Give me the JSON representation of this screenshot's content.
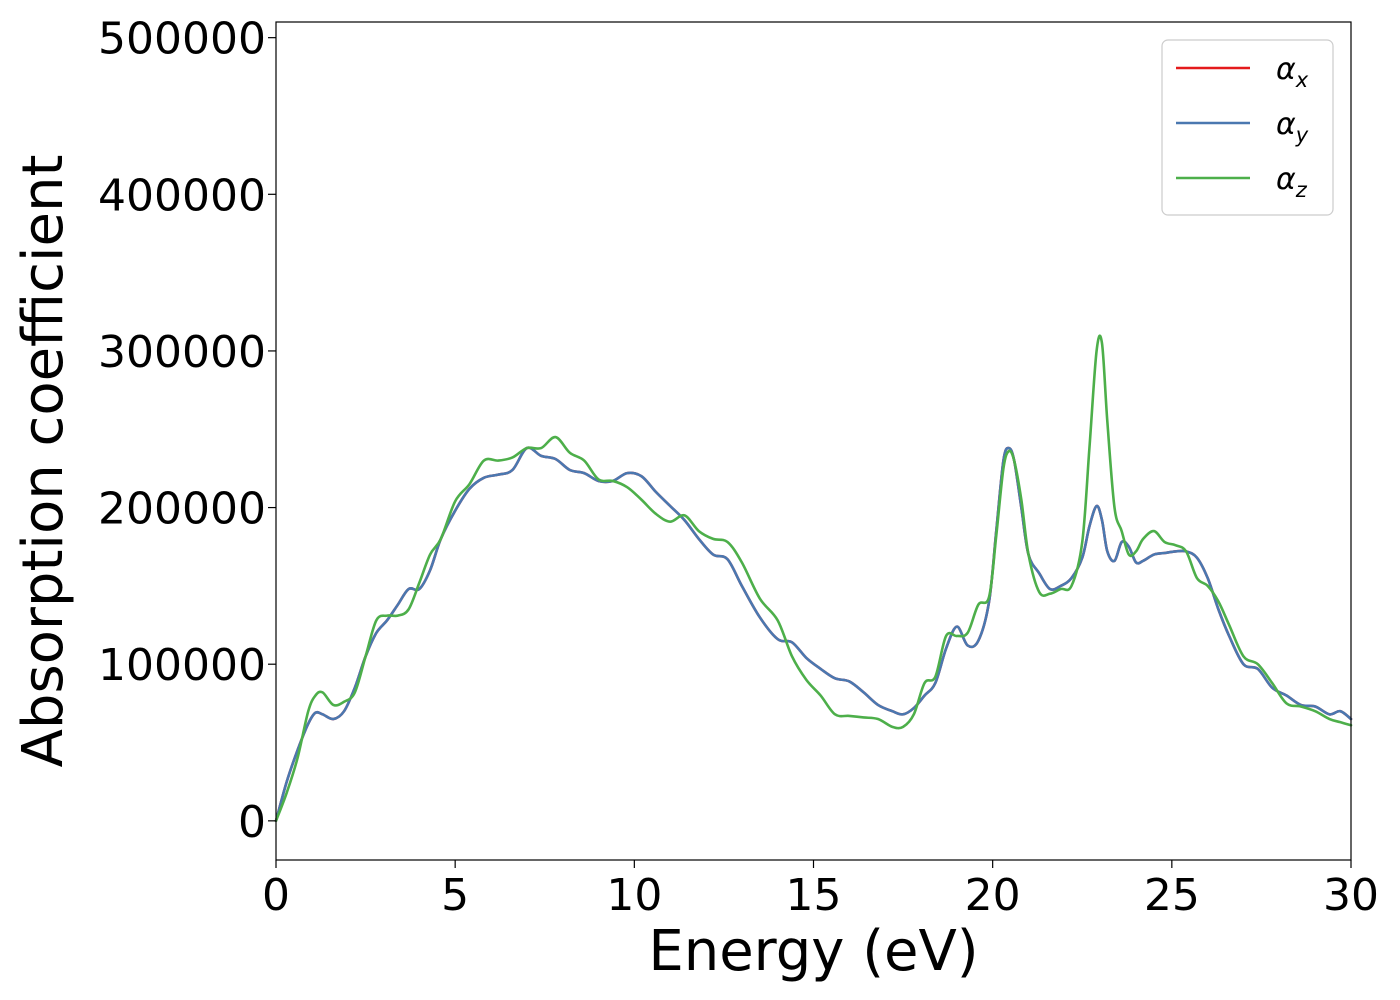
{
  "chart_data": {
    "type": "line",
    "title": "",
    "xlabel": "Energy (eV)",
    "ylabel": "Absorption coefficient",
    "xlim": [
      0,
      30
    ],
    "ylim": [
      -25000,
      510000
    ],
    "xticks": [
      0,
      5,
      10,
      15,
      20,
      25,
      30
    ],
    "xtick_labels": [
      "0",
      "5",
      "10",
      "15",
      "20",
      "25",
      "30"
    ],
    "yticks": [
      0,
      100000,
      200000,
      300000,
      400000,
      500000
    ],
    "ytick_labels": [
      "0",
      "100000",
      "200000",
      "300000",
      "400000",
      "500000"
    ],
    "grid": false,
    "legend_position": "top-right",
    "series": [
      {
        "name": "α_x",
        "label_main": "α",
        "label_sub": "x",
        "color": "#e41a1c",
        "x": [
          0,
          0.3,
          0.6,
          0.9,
          1.1,
          1.3,
          1.6,
          1.9,
          2.2,
          2.5,
          2.8,
          3.1,
          3.4,
          3.7,
          4.0,
          4.3,
          4.6,
          5.0,
          5.4,
          5.8,
          6.2,
          6.6,
          7.0,
          7.4,
          7.8,
          8.2,
          8.6,
          9.0,
          9.4,
          9.8,
          10.2,
          10.6,
          11.0,
          11.4,
          11.8,
          12.2,
          12.6,
          13.0,
          13.5,
          14.0,
          14.4,
          14.8,
          15.2,
          15.6,
          16.0,
          16.4,
          16.8,
          17.2,
          17.5,
          17.8,
          18.1,
          18.4,
          18.7,
          19.0,
          19.3,
          19.6,
          19.9,
          20.1,
          20.3,
          20.45,
          20.6,
          20.8,
          21.0,
          21.3,
          21.6,
          21.9,
          22.2,
          22.5,
          22.7,
          22.9,
          23.05,
          23.2,
          23.4,
          23.6,
          23.8,
          24.0,
          24.2,
          24.5,
          24.8,
          25.1,
          25.4,
          25.7,
          26.0,
          26.3,
          26.6,
          27.0,
          27.4,
          27.8,
          28.2,
          28.6,
          29.0,
          29.4,
          29.7,
          30.0
        ],
        "y": [
          0,
          25000,
          45000,
          62000,
          69000,
          68000,
          65000,
          70000,
          85000,
          105000,
          120000,
          128000,
          138000,
          148000,
          148000,
          160000,
          180000,
          198000,
          212000,
          219000,
          221000,
          224000,
          238000,
          233000,
          231000,
          224000,
          222000,
          217000,
          217000,
          222000,
          220000,
          210000,
          201000,
          192000,
          180000,
          170000,
          167000,
          150000,
          130000,
          116000,
          114000,
          104000,
          97000,
          91000,
          89000,
          82000,
          74000,
          70000,
          68000,
          72000,
          80000,
          88000,
          110000,
          124000,
          112000,
          115000,
          140000,
          185000,
          230000,
          238000,
          230000,
          200000,
          170000,
          158000,
          148000,
          150000,
          155000,
          168000,
          188000,
          201000,
          192000,
          172000,
          166000,
          178000,
          175000,
          165000,
          166000,
          170000,
          171000,
          172000,
          172000,
          168000,
          155000,
          135000,
          118000,
          100000,
          97000,
          85000,
          80000,
          74000,
          73000,
          68000,
          70000,
          65000
        ]
      },
      {
        "name": "α_y",
        "label_main": "α",
        "label_sub": "y",
        "color": "#4a78b0",
        "x": [
          0,
          0.3,
          0.6,
          0.9,
          1.1,
          1.3,
          1.6,
          1.9,
          2.2,
          2.5,
          2.8,
          3.1,
          3.4,
          3.7,
          4.0,
          4.3,
          4.6,
          5.0,
          5.4,
          5.8,
          6.2,
          6.6,
          7.0,
          7.4,
          7.8,
          8.2,
          8.6,
          9.0,
          9.4,
          9.8,
          10.2,
          10.6,
          11.0,
          11.4,
          11.8,
          12.2,
          12.6,
          13.0,
          13.5,
          14.0,
          14.4,
          14.8,
          15.2,
          15.6,
          16.0,
          16.4,
          16.8,
          17.2,
          17.5,
          17.8,
          18.1,
          18.4,
          18.7,
          19.0,
          19.3,
          19.6,
          19.9,
          20.1,
          20.3,
          20.45,
          20.6,
          20.8,
          21.0,
          21.3,
          21.6,
          21.9,
          22.2,
          22.5,
          22.7,
          22.9,
          23.05,
          23.2,
          23.4,
          23.6,
          23.8,
          24.0,
          24.2,
          24.5,
          24.8,
          25.1,
          25.4,
          25.7,
          26.0,
          26.3,
          26.6,
          27.0,
          27.4,
          27.8,
          28.2,
          28.6,
          29.0,
          29.4,
          29.7,
          30.0
        ],
        "y": [
          0,
          25000,
          45000,
          62000,
          69000,
          68000,
          65000,
          70000,
          85000,
          105000,
          120000,
          128000,
          138000,
          148000,
          148000,
          160000,
          180000,
          198000,
          212000,
          219000,
          221000,
          224000,
          238000,
          233000,
          231000,
          224000,
          222000,
          217000,
          217000,
          222000,
          220000,
          210000,
          201000,
          192000,
          180000,
          170000,
          167000,
          150000,
          130000,
          116000,
          114000,
          104000,
          97000,
          91000,
          89000,
          82000,
          74000,
          70000,
          68000,
          72000,
          80000,
          88000,
          110000,
          124000,
          112000,
          115000,
          140000,
          185000,
          230000,
          238000,
          230000,
          200000,
          170000,
          158000,
          148000,
          150000,
          155000,
          168000,
          188000,
          201000,
          192000,
          172000,
          166000,
          178000,
          175000,
          165000,
          166000,
          170000,
          171000,
          172000,
          172000,
          168000,
          155000,
          135000,
          118000,
          100000,
          97000,
          85000,
          80000,
          74000,
          73000,
          68000,
          70000,
          65000
        ]
      },
      {
        "name": "α_z",
        "label_main": "α",
        "label_sub": "z",
        "color": "#4daf4a",
        "x": [
          0,
          0.3,
          0.6,
          0.9,
          1.1,
          1.3,
          1.6,
          1.9,
          2.2,
          2.5,
          2.8,
          3.1,
          3.4,
          3.7,
          4.0,
          4.3,
          4.6,
          5.0,
          5.4,
          5.8,
          6.2,
          6.6,
          7.0,
          7.4,
          7.8,
          8.2,
          8.6,
          9.0,
          9.4,
          9.8,
          10.2,
          10.6,
          11.0,
          11.4,
          11.8,
          12.2,
          12.6,
          13.0,
          13.5,
          14.0,
          14.4,
          14.8,
          15.2,
          15.6,
          16.0,
          16.4,
          16.8,
          17.2,
          17.5,
          17.8,
          18.1,
          18.4,
          18.7,
          19.0,
          19.3,
          19.6,
          19.9,
          20.1,
          20.3,
          20.45,
          20.6,
          20.8,
          21.0,
          21.3,
          21.6,
          21.9,
          22.2,
          22.5,
          22.7,
          22.9,
          23.05,
          23.2,
          23.4,
          23.6,
          23.8,
          24.0,
          24.2,
          24.5,
          24.8,
          25.1,
          25.4,
          25.7,
          26.0,
          26.3,
          26.6,
          27.0,
          27.4,
          27.8,
          28.2,
          28.6,
          29.0,
          29.4,
          29.7,
          30.0
        ],
        "y": [
          0,
          18000,
          40000,
          70000,
          80000,
          82000,
          74000,
          76000,
          82000,
          105000,
          128000,
          131000,
          131000,
          135000,
          152000,
          170000,
          180000,
          204000,
          215000,
          230000,
          230000,
          232000,
          238000,
          238000,
          245000,
          235000,
          230000,
          218000,
          217000,
          213000,
          205000,
          196000,
          191000,
          195000,
          185000,
          180000,
          178000,
          165000,
          142000,
          128000,
          105000,
          90000,
          80000,
          68000,
          67000,
          66000,
          65000,
          60000,
          60000,
          68000,
          88000,
          92000,
          118000,
          118000,
          120000,
          138000,
          143000,
          182000,
          225000,
          236000,
          230000,
          205000,
          170000,
          146000,
          145000,
          148000,
          150000,
          178000,
          238000,
          300000,
          305000,
          255000,
          200000,
          185000,
          170000,
          172000,
          180000,
          185000,
          178000,
          176000,
          172000,
          155000,
          150000,
          140000,
          125000,
          105000,
          100000,
          88000,
          75000,
          73000,
          70000,
          65000,
          63000,
          61000
        ]
      }
    ]
  }
}
